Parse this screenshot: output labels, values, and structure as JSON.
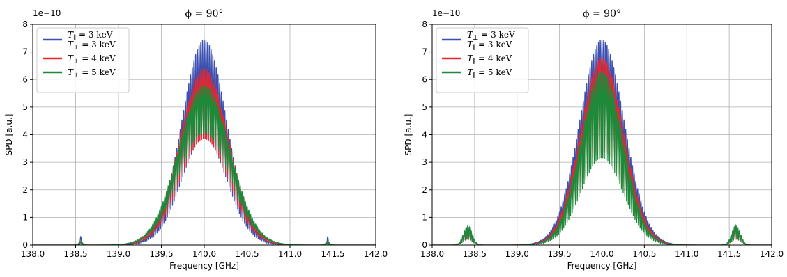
{
  "chart_data": [
    {
      "type": "line",
      "title": "ϕ = 90°",
      "xlabel": "Frequency [GHz]",
      "ylabel": "SPD [a.u.]",
      "y_offset_label": "1e−10",
      "xlim": [
        138.0,
        142.0
      ],
      "ylim": [
        0,
        8
      ],
      "xticks": [
        "138.0",
        "138.5",
        "139.0",
        "139.5",
        "140.0",
        "140.5",
        "141.0",
        "141.5",
        "142.0"
      ],
      "yticks": [
        "0",
        "1",
        "2",
        "3",
        "4",
        "5",
        "6",
        "7",
        "8"
      ],
      "grid": true,
      "legend_position": "top-left",
      "center": 140.0,
      "fringe_spacing_ghz": 0.02,
      "series": [
        {
          "name": "T∥ = 3 keV  T⊥ = 3 keV",
          "legend_lines": [
            "T∥ = 3 keV",
            "T⊥ = 3 keV"
          ],
          "color": "#3b50b0",
          "peak": 7.45,
          "trough_ratio": 0.52,
          "width": 0.37,
          "side_x": [
            138.56,
            141.44
          ],
          "side_peak": 0.3,
          "side_width": 0.015
        },
        {
          "name": "T⊥ = 4 keV",
          "legend_lines": [
            "T⊥ = 4 keV"
          ],
          "color": "#e8262b",
          "peak": 6.4,
          "trough_ratio": 0.6,
          "width": 0.4,
          "side_x": [
            138.56,
            141.44
          ],
          "side_peak": 0.12,
          "side_width": 0.03
        },
        {
          "name": "T⊥ = 5 keV",
          "legend_lines": [
            "T⊥ = 5 keV"
          ],
          "color": "#1d8a3a",
          "peak": 5.8,
          "trough_ratio": 0.7,
          "width": 0.42,
          "side_x": [
            138.56,
            141.44
          ],
          "side_peak": 0.1,
          "side_width": 0.04
        }
      ]
    },
    {
      "type": "line",
      "title": "ϕ = 90°",
      "xlabel": "Frequency [GHz]",
      "ylabel": "SPD [a.u.]",
      "y_offset_label": "1e−10",
      "xlim": [
        138.0,
        142.0
      ],
      "ylim": [
        0,
        8
      ],
      "xticks": [
        "138.0",
        "138.5",
        "139.0",
        "139.5",
        "140.0",
        "140.5",
        "141.0",
        "141.5",
        "142.0"
      ],
      "yticks": [
        "0",
        "1",
        "2",
        "3",
        "4",
        "5",
        "6",
        "7",
        "8"
      ],
      "grid": true,
      "legend_position": "top-left",
      "center": 140.0,
      "fringe_spacing_ghz": 0.02,
      "series": [
        {
          "name": "T⊥ = 3 keV  T∥ = 3 keV",
          "legend_lines": [
            "T⊥ = 3 keV",
            "T∥ = 3 keV"
          ],
          "color": "#3b50b0",
          "peak": 7.45,
          "trough_ratio": 0.52,
          "width": 0.37,
          "side_x": [
            138.42,
            141.58
          ],
          "side_peak": 0.7,
          "side_width": 0.07
        },
        {
          "name": "T∥ = 4 keV",
          "legend_lines": [
            "T∥ = 4 keV"
          ],
          "color": "#e8262b",
          "peak": 6.8,
          "trough_ratio": 0.5,
          "width": 0.36,
          "side_x": [
            138.42,
            141.58
          ],
          "side_peak": 0.65,
          "side_width": 0.07
        },
        {
          "name": "T∥ = 5 keV",
          "legend_lines": [
            "T∥ = 5 keV"
          ],
          "color": "#1d8a3a",
          "peak": 6.3,
          "trough_ratio": 0.5,
          "width": 0.35,
          "side_x": [
            138.42,
            141.58
          ],
          "side_peak": 0.7,
          "side_width": 0.07
        }
      ]
    }
  ]
}
